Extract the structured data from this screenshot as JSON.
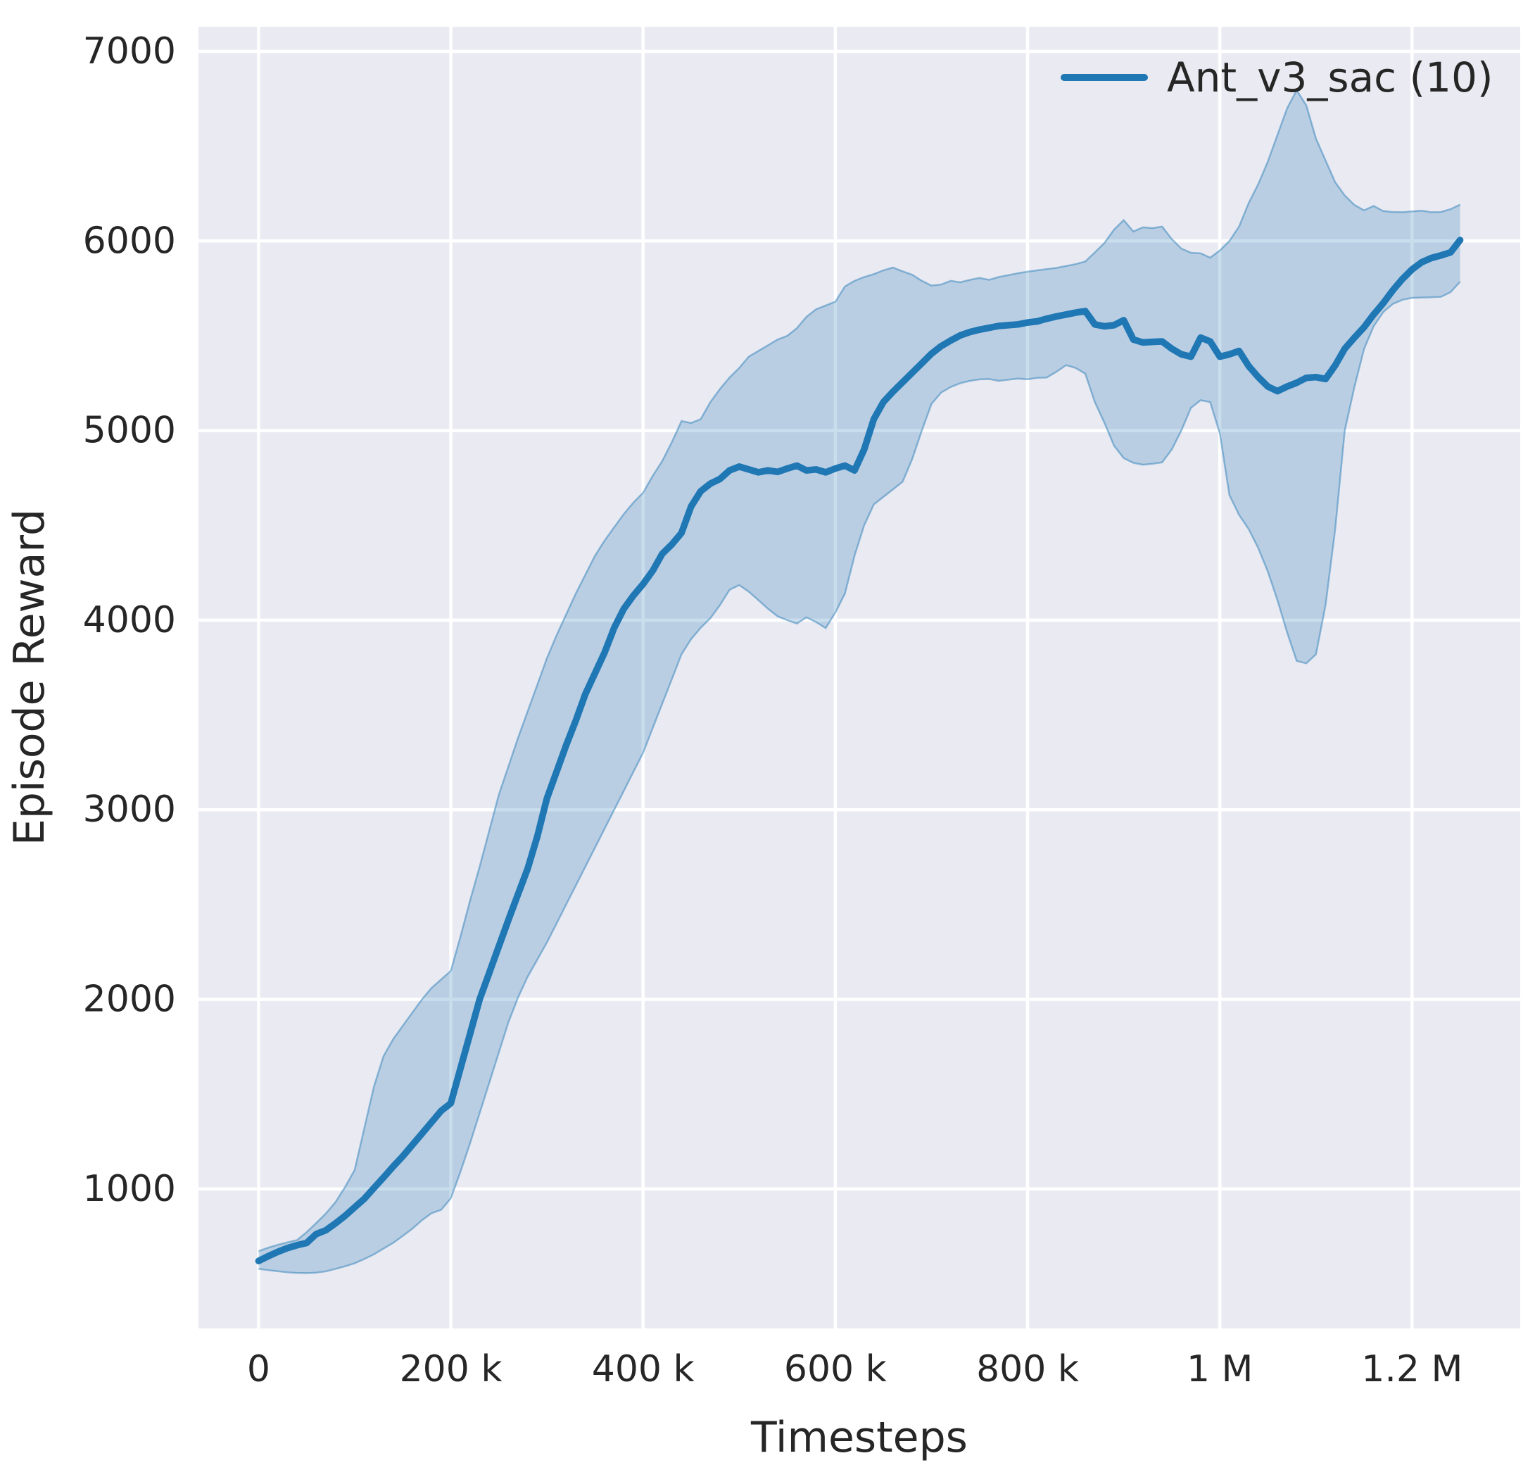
{
  "chart_data": {
    "type": "line",
    "title": "",
    "xlabel": "Timesteps",
    "ylabel": "Episode Reward",
    "xlim": [
      -62500,
      1312500
    ],
    "ylim": [
      264,
      7130
    ],
    "grid": true,
    "legend_position": "upper right",
    "x_ticks": [
      {
        "value": 0,
        "label": "0"
      },
      {
        "value": 200000,
        "label": "200 k"
      },
      {
        "value": 400000,
        "label": "400 k"
      },
      {
        "value": 600000,
        "label": "600 k"
      },
      {
        "value": 800000,
        "label": "800 k"
      },
      {
        "value": 1000000,
        "label": "1 M"
      },
      {
        "value": 1200000,
        "label": "1.2 M"
      }
    ],
    "y_ticks": [
      {
        "value": 1000,
        "label": "1000"
      },
      {
        "value": 2000,
        "label": "2000"
      },
      {
        "value": 3000,
        "label": "3000"
      },
      {
        "value": 4000,
        "label": "4000"
      },
      {
        "value": 5000,
        "label": "5000"
      },
      {
        "value": 6000,
        "label": "6000"
      },
      {
        "value": 7000,
        "label": "7000"
      }
    ],
    "colors": {
      "plot_bg": "#eaeaf2",
      "grid": "#ffffff",
      "text": "#262626",
      "line": "#1f77b4",
      "band_fill": "rgba(31,119,180,0.24)",
      "band_edge": "rgba(31,119,180,0.45)"
    },
    "series": [
      {
        "name": "Ant_v3_sac (10)",
        "color": "#1f77b4",
        "x_start": 0,
        "x_step": 10000,
        "mean": [
          620,
          645,
          668,
          688,
          703,
          715,
          762,
          782,
          818,
          858,
          903,
          948,
          1005,
          1060,
          1118,
          1172,
          1232,
          1292,
          1352,
          1412,
          1452,
          1635,
          1817,
          2000,
          2140,
          2280,
          2420,
          2555,
          2690,
          2860,
          3060,
          3200,
          3340,
          3470,
          3610,
          3720,
          3830,
          3960,
          4060,
          4130,
          4190,
          4260,
          4350,
          4400,
          4460,
          4600,
          4680,
          4720,
          4745,
          4790,
          4810,
          4795,
          4780,
          4790,
          4782,
          4800,
          4815,
          4790,
          4795,
          4780,
          4800,
          4815,
          4790,
          4900,
          5060,
          5150,
          5205,
          5255,
          5305,
          5355,
          5405,
          5445,
          5475,
          5502,
          5520,
          5532,
          5542,
          5552,
          5556,
          5560,
          5570,
          5576,
          5590,
          5602,
          5612,
          5622,
          5630,
          5560,
          5550,
          5556,
          5582,
          5480,
          5465,
          5468,
          5470,
          5432,
          5402,
          5390,
          5490,
          5470,
          5390,
          5402,
          5420,
          5340,
          5282,
          5232,
          5208,
          5232,
          5252,
          5278,
          5282,
          5272,
          5344,
          5432,
          5490,
          5545,
          5612,
          5672,
          5740,
          5800,
          5850,
          5888,
          5910,
          5924,
          5940,
          6005
        ],
        "band_lower": [
          578,
          572,
          566,
          560,
          557,
          556,
          558,
          565,
          578,
          592,
          608,
          630,
          655,
          685,
          715,
          752,
          790,
          835,
          872,
          890,
          950,
          1090,
          1240,
          1400,
          1560,
          1720,
          1880,
          2010,
          2120,
          2210,
          2300,
          2400,
          2500,
          2600,
          2700,
          2800,
          2900,
          3000,
          3100,
          3200,
          3300,
          3430,
          3560,
          3690,
          3820,
          3900,
          3960,
          4010,
          4080,
          4160,
          4185,
          4150,
          4105,
          4060,
          4020,
          4000,
          3982,
          4015,
          3990,
          3958,
          4040,
          4140,
          4340,
          4500,
          4610,
          4650,
          4690,
          4730,
          4850,
          5000,
          5140,
          5200,
          5230,
          5250,
          5262,
          5270,
          5272,
          5262,
          5268,
          5274,
          5270,
          5278,
          5280,
          5310,
          5345,
          5330,
          5300,
          5150,
          5040,
          4920,
          4855,
          4830,
          4820,
          4825,
          4832,
          4900,
          5000,
          5120,
          5160,
          5150,
          4985,
          4660,
          4555,
          4480,
          4380,
          4255,
          4105,
          3935,
          3785,
          3772,
          3820,
          4080,
          4480,
          5000,
          5230,
          5430,
          5550,
          5625,
          5668,
          5690,
          5700,
          5702,
          5703,
          5705,
          5730,
          5785
        ],
        "band_upper": [
          672,
          690,
          705,
          718,
          730,
          772,
          820,
          870,
          930,
          1010,
          1100,
          1320,
          1540,
          1700,
          1790,
          1860,
          1930,
          2000,
          2060,
          2105,
          2150,
          2330,
          2520,
          2700,
          2890,
          3080,
          3230,
          3380,
          3520,
          3660,
          3800,
          3920,
          4030,
          4140,
          4240,
          4340,
          4420,
          4490,
          4560,
          4620,
          4672,
          4760,
          4840,
          4940,
          5050,
          5040,
          5060,
          5150,
          5220,
          5280,
          5330,
          5390,
          5420,
          5450,
          5480,
          5500,
          5540,
          5600,
          5640,
          5660,
          5680,
          5760,
          5790,
          5810,
          5825,
          5845,
          5860,
          5840,
          5822,
          5790,
          5765,
          5770,
          5790,
          5782,
          5795,
          5805,
          5795,
          5810,
          5820,
          5830,
          5838,
          5845,
          5852,
          5858,
          5868,
          5878,
          5892,
          5940,
          5990,
          6060,
          6110,
          6050,
          6072,
          6068,
          6076,
          6010,
          5960,
          5938,
          5935,
          5912,
          5950,
          6000,
          6076,
          6200,
          6300,
          6420,
          6560,
          6700,
          6795,
          6715,
          6540,
          6425,
          6310,
          6240,
          6190,
          6162,
          6185,
          6158,
          6153,
          6152,
          6156,
          6160,
          6152,
          6153,
          6168,
          6192
        ]
      }
    ]
  }
}
